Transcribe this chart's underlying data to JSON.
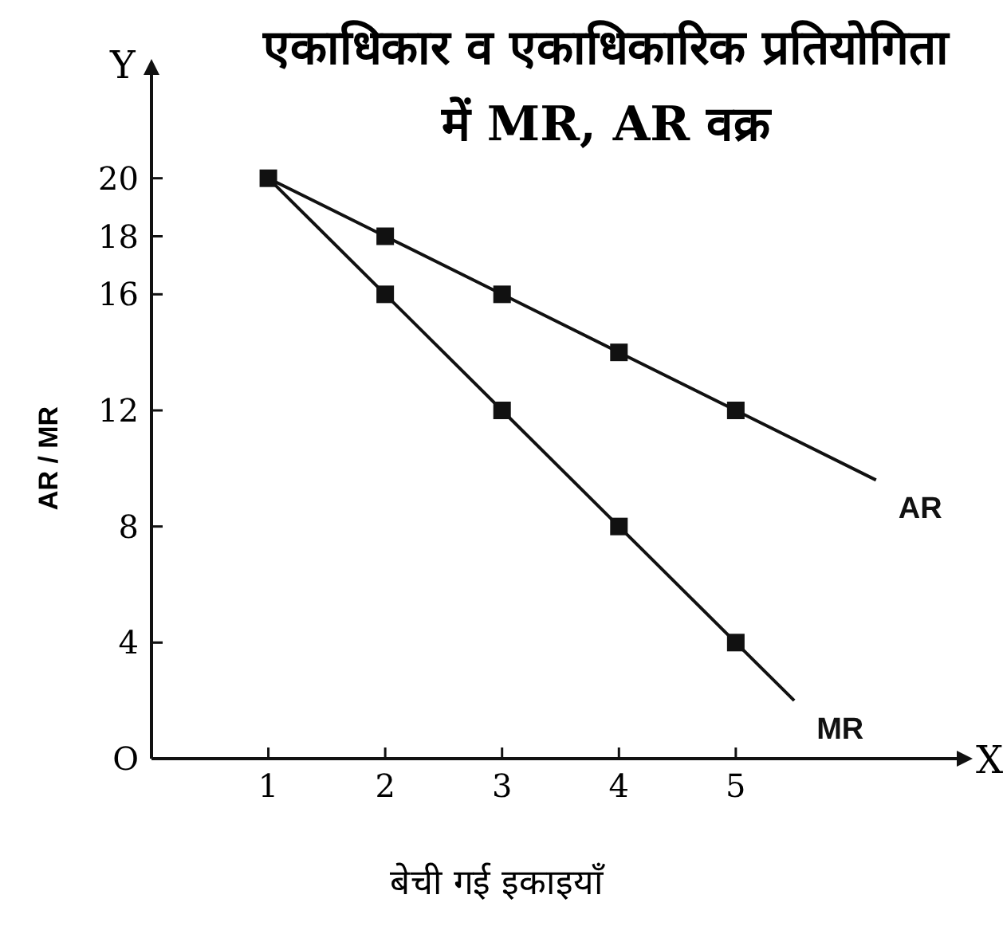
{
  "chart_data": {
    "type": "line",
    "title": "एकाधिकार व एकाधिकारिक प्रतियोगिता में MR, AR वक्र",
    "xlabel": "बेची गई इकाइयाँ",
    "ylabel": "AR / MR",
    "xlim": [
      0,
      7
    ],
    "ylim": [
      0,
      24
    ],
    "xticks": [
      1,
      2,
      3,
      4,
      5
    ],
    "yticks": [
      {
        "value": 0,
        "label": "O"
      },
      4,
      8,
      12,
      16,
      18,
      20
    ],
    "grid": false,
    "legend": false,
    "series": [
      {
        "name": "AR",
        "color": "#111111",
        "marker": "none",
        "x": [
          1,
          2,
          3,
          4,
          5,
          6.2
        ],
        "values": [
          20,
          18,
          16,
          14,
          12,
          9.6
        ]
      },
      {
        "name": "MR",
        "color": "#111111",
        "marker": "none",
        "x": [
          1,
          2,
          3,
          4,
          5,
          5.5
        ],
        "values": [
          20,
          16,
          12,
          8,
          4,
          2
        ]
      },
      {
        "type": "scatter",
        "color": "#111111",
        "marker": "square",
        "x": [
          1,
          2,
          3,
          4,
          5
        ],
        "values": [
          20,
          18,
          16,
          14,
          12
        ]
      },
      {
        "type": "scatter",
        "color": "#111111",
        "marker": "square",
        "x": [
          2,
          3,
          4,
          5
        ],
        "values": [
          16,
          12,
          8,
          4
        ]
      }
    ],
    "annotations": [
      "X",
      "Y"
    ]
  }
}
